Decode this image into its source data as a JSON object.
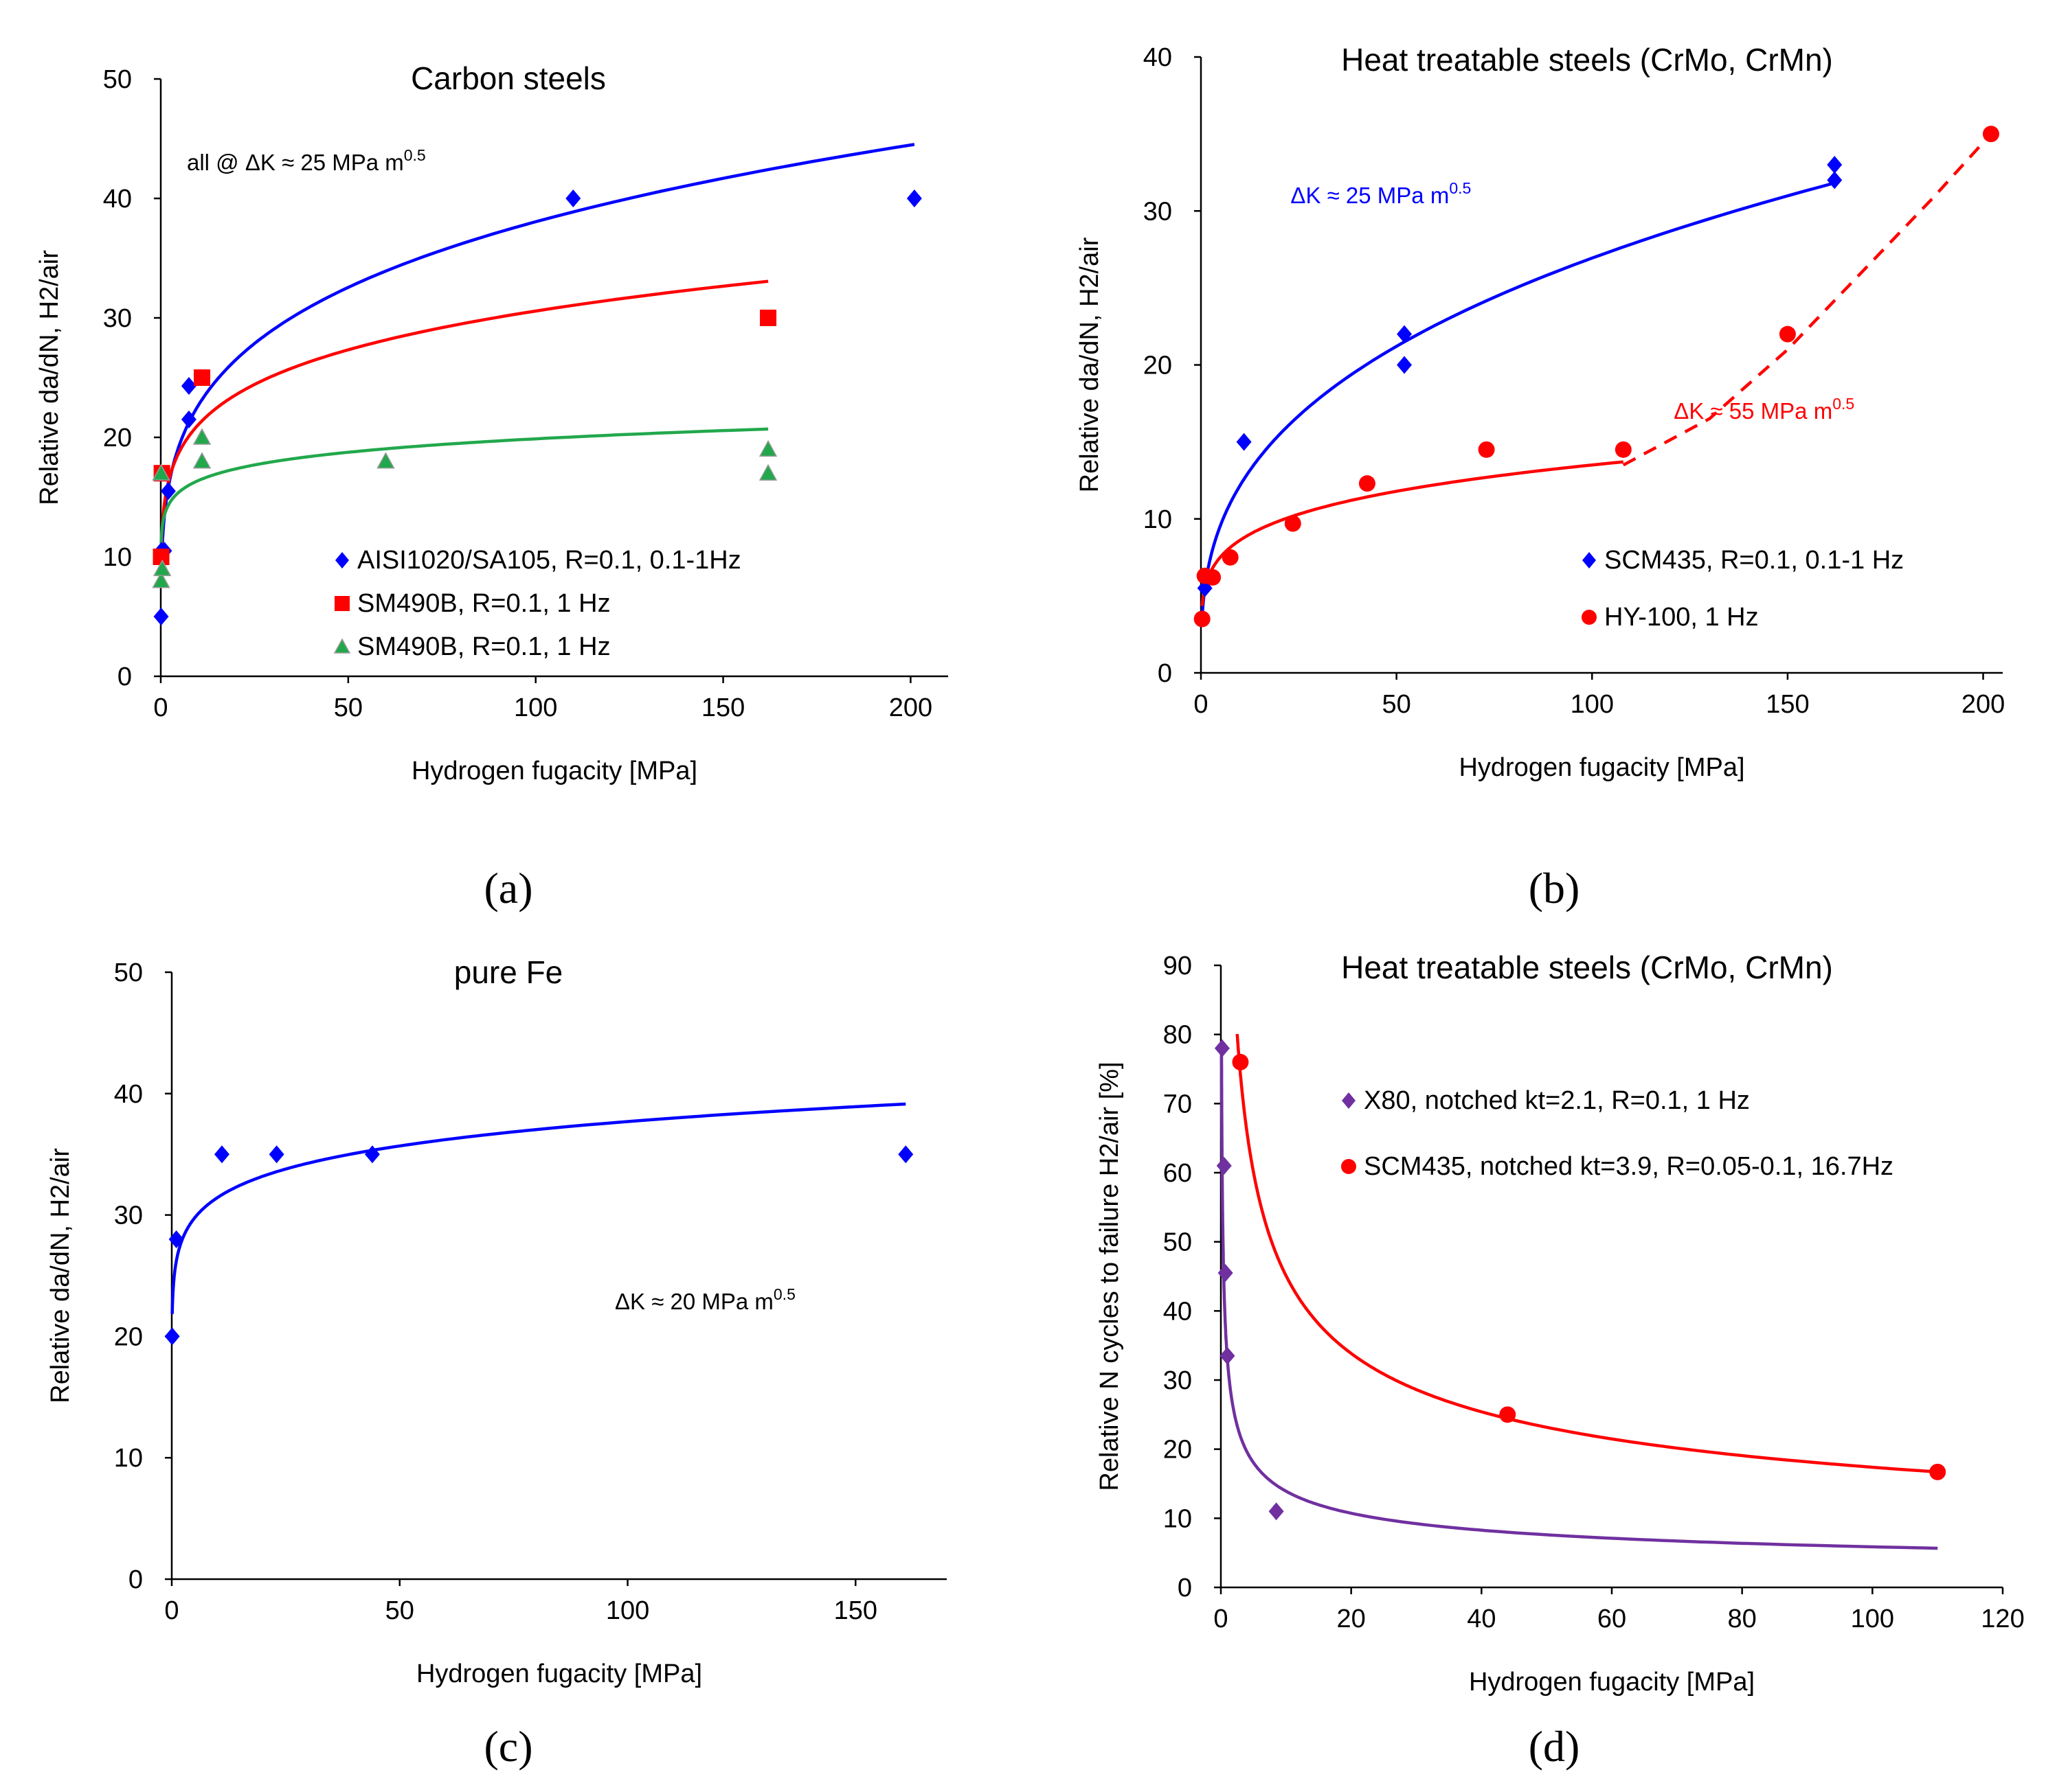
{
  "colors": {
    "blue": "#0000ff",
    "red": "#ff0000",
    "green": "#22a84c",
    "purple": "#7030a0",
    "axis": "#000000",
    "text": "#000000"
  },
  "chart_data": [
    {
      "id": "a",
      "panel_label": "(a)",
      "type": "scatter",
      "title": "Carbon steels",
      "xlabel": "Hydrogen fugacity [MPa]",
      "ylabel": "Relative da/dN, H2/air",
      "xlim": [
        0,
        210
      ],
      "ylim": [
        0,
        50
      ],
      "xticks": [
        0,
        50,
        100,
        150,
        200
      ],
      "yticks": [
        0,
        10,
        20,
        30,
        40,
        50
      ],
      "annotation": {
        "text": "all @ ΔK ≈ 25 MPa m",
        "sup": "0.5",
        "color": "text"
      },
      "legend": [
        {
          "label": "AISI1020/SA105, R=0.1, 0.1-1Hz",
          "marker": "diamond",
          "color": "blue"
        },
        {
          "label": "SM490B, R=0.1, 1 Hz",
          "marker": "square",
          "color": "red"
        },
        {
          "label": "SM490B, R=0.1, 1 Hz",
          "marker": "triangle",
          "color": "green"
        }
      ],
      "series": [
        {
          "name": "AISI1020/SA105, R=0.1, 0.1-1Hz",
          "marker": "diamond",
          "color": "blue",
          "points": [
            [
              0.1,
              5
            ],
            [
              0.2,
              10.5
            ],
            [
              1,
              10.5
            ],
            [
              2,
              15.5
            ],
            [
              7.5,
              24.3
            ],
            [
              7.5,
              21.5
            ],
            [
              110,
              40
            ],
            [
              201,
              40
            ]
          ],
          "fit": {
            "form": "power",
            "a": 13.5,
            "b": 0.225,
            "x0": 0.1,
            "x1": 201,
            "dashed_from": null
          }
        },
        {
          "name": "SM490B, R=0.1, 1 Hz",
          "marker": "square",
          "color": "red",
          "points": [
            [
              0.1,
              10
            ],
            [
              0.3,
              17
            ],
            [
              11,
              25
            ],
            [
              162,
              30
            ]
          ],
          "fit": {
            "form": "power",
            "a": 14.5,
            "b": 0.162,
            "x0": 0.1,
            "x1": 162,
            "dashed_from": null
          }
        },
        {
          "name": "SM490B, R=0.1, 1 Hz",
          "marker": "triangle",
          "color": "green",
          "points": [
            [
              0.1,
              8
            ],
            [
              0.4,
              9
            ],
            [
              0.1,
              17
            ],
            [
              11,
              20
            ],
            [
              11,
              18
            ],
            [
              60,
              18
            ],
            [
              162,
              19
            ],
            [
              162,
              17
            ]
          ],
          "fit": {
            "form": "power",
            "a": 13.5,
            "b": 0.084,
            "x0": 0.1,
            "x1": 162,
            "dashed_from": null
          }
        }
      ]
    },
    {
      "id": "b",
      "panel_label": "(b)",
      "type": "scatter",
      "title": "Heat treatable steels (CrMo, CrMn)",
      "xlabel": "Hydrogen fugacity [MPa]",
      "ylabel": "Relative da/dN, H2/air",
      "xlim": [
        0,
        205
      ],
      "ylim": [
        0,
        40
      ],
      "xticks": [
        0,
        50,
        100,
        150,
        200
      ],
      "yticks": [
        0,
        10,
        20,
        30,
        40
      ],
      "annotations": [
        {
          "text": "ΔK ≈ 25 MPa m",
          "sup": "0.5",
          "color": "blue",
          "x": 46,
          "y": 30.5
        },
        {
          "text": "ΔK ≈ 55 MPa m",
          "sup": "0.5",
          "color": "red",
          "x": 144,
          "y": 16.5
        }
      ],
      "legend": [
        {
          "label": "SCM435, R=0.1, 0.1-1 Hz",
          "marker": "diamond",
          "color": "blue"
        },
        {
          "label": "HY-100, 1 Hz",
          "marker": "circle",
          "color": "red"
        }
      ],
      "series": [
        {
          "name": "SCM435, R=0.1, 0.1-1 Hz",
          "marker": "diamond",
          "color": "blue",
          "points": [
            [
              1,
              5.5
            ],
            [
              11,
              15
            ],
            [
              52,
              22
            ],
            [
              52,
              20
            ],
            [
              162,
              33
            ],
            [
              162,
              32
            ]
          ],
          "fit": {
            "form": "power",
            "a": 5.5,
            "b": 0.345,
            "x0": 0.3,
            "x1": 162,
            "dashed_from": null
          }
        },
        {
          "name": "HY-100, 1 Hz",
          "marker": "circle",
          "color": "red",
          "points": [
            [
              0.3,
              3.5
            ],
            [
              1,
              6.3
            ],
            [
              3,
              6.2
            ],
            [
              7.5,
              7.5
            ],
            [
              23.5,
              9.7
            ],
            [
              42.5,
              12.3
            ],
            [
              73,
              14.5
            ],
            [
              108,
              14.5
            ],
            [
              150,
              22
            ],
            [
              202,
              35
            ]
          ],
          "fit": {
            "form": "power",
            "a": 5.5,
            "b": 0.195,
            "x0": 0.3,
            "x1": 108,
            "dashed_from": 108,
            "dashed_points": [
              [
                108,
                13.5
              ],
              [
                130,
                16.5
              ],
              [
                150,
                21.0
              ],
              [
                170,
                26.3
              ],
              [
                187,
                30.8
              ],
              [
                202,
                35
              ]
            ]
          }
        }
      ]
    },
    {
      "id": "c",
      "panel_label": "(c)",
      "type": "scatter",
      "title": "pure Fe",
      "xlabel": "Hydrogen fugacity [MPa]",
      "ylabel": "Relative da/dN, H2/air",
      "xlim": [
        0,
        170
      ],
      "ylim": [
        0,
        50
      ],
      "xticks": [
        0,
        50,
        100,
        150
      ],
      "yticks": [
        0,
        10,
        20,
        30,
        40,
        50
      ],
      "annotation": {
        "text": "ΔK ≈ 20 MPa m",
        "sup": "0.5",
        "color": "text"
      },
      "legend": [],
      "series": [
        {
          "name": "pure Fe",
          "marker": "diamond",
          "color": "blue",
          "points": [
            [
              0.1,
              20
            ],
            [
              1,
              28
            ],
            [
              11,
              35
            ],
            [
              23,
              35
            ],
            [
              44,
              35
            ],
            [
              161,
              35
            ]
          ],
          "fit": {
            "form": "power",
            "a": 26.2,
            "b": 0.079,
            "x0": 0.1,
            "x1": 161,
            "dashed_from": null
          }
        }
      ]
    },
    {
      "id": "d",
      "panel_label": "(d)",
      "type": "scatter",
      "title": "Heat treatable steels (CrMo, CrMn)",
      "xlabel": "Hydrogen fugacity [MPa]",
      "ylabel": "Relative N cycles to failure H2/air [%]",
      "xlim": [
        0,
        120
      ],
      "ylim": [
        0,
        90
      ],
      "xticks": [
        0,
        20,
        40,
        60,
        80,
        100,
        120
      ],
      "yticks": [
        0,
        10,
        20,
        30,
        40,
        50,
        60,
        70,
        80,
        90
      ],
      "legend": [
        {
          "label": "X80, notched kt=2.1, R=0.1, 1 Hz",
          "marker": "diamond",
          "color": "purple"
        },
        {
          "label": "SCM435, notched kt=3.9, R=0.05-0.1, 16.7Hz",
          "marker": "circle",
          "color": "red"
        }
      ],
      "series": [
        {
          "name": "X80, notched kt=2.1, R=0.1, 1 Hz",
          "marker": "diamond",
          "color": "purple",
          "points": [
            [
              0.2,
              78
            ],
            [
              0.5,
              61
            ],
            [
              0.7,
              45.5
            ],
            [
              1,
              33.5
            ],
            [
              8.5,
              11
            ]
          ],
          "fit": {
            "form": "power",
            "a": 33,
            "b": -0.375,
            "x0": 0.1,
            "x1": 110,
            "dashed_from": null
          }
        },
        {
          "name": "SCM435, notched kt=3.9, R=0.05-0.1, 16.7Hz",
          "marker": "circle",
          "color": "red",
          "points": [
            [
              3,
              76
            ],
            [
              44,
              25
            ],
            [
              110,
              16.7
            ]
          ],
          "fit": {
            "form": "power",
            "a": 117,
            "b": -0.414,
            "x0": 2.5,
            "x1": 110,
            "dashed_from": null
          }
        }
      ]
    }
  ]
}
